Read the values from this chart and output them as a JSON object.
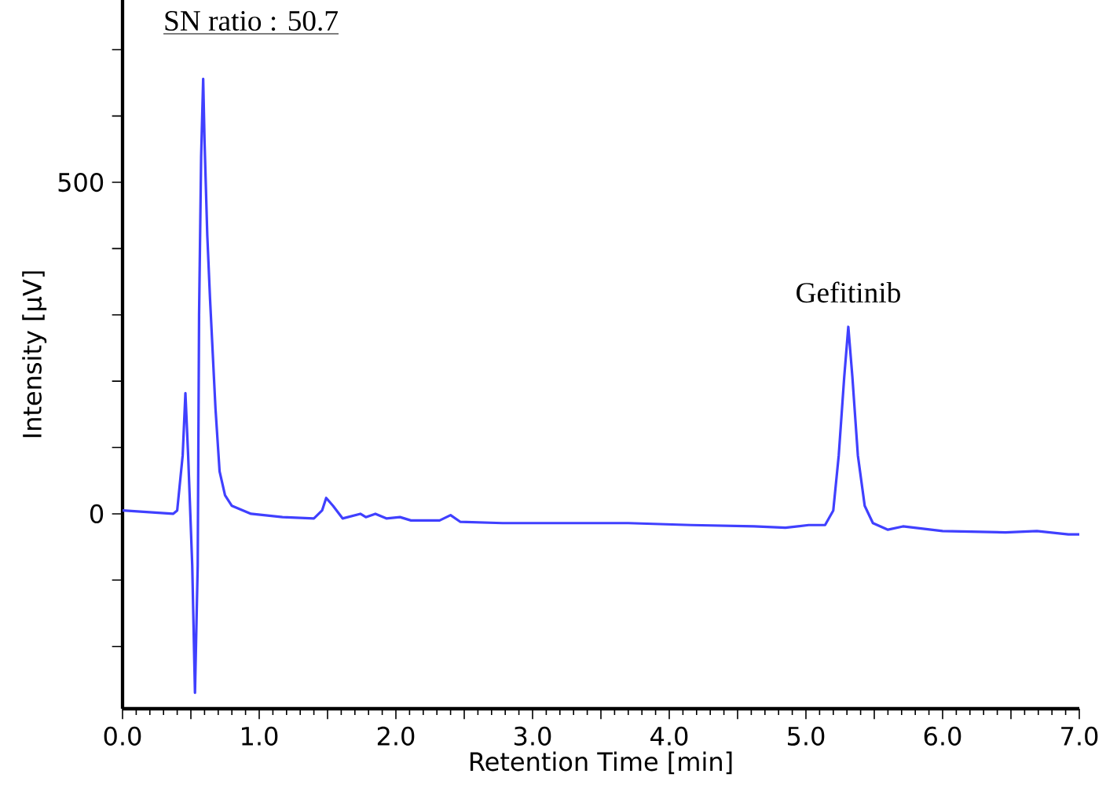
{
  "chart_data": {
    "type": "line",
    "xlabel": "Retention Time [min]",
    "ylabel": "Intensity [μV]",
    "xlim": [
      0,
      7
    ],
    "ylim": [
      -294,
      775
    ],
    "xticks": [
      {
        "value": 0,
        "label": "0.0"
      },
      {
        "value": 0.5,
        "label": null
      },
      {
        "value": 1,
        "label": "1.0"
      },
      {
        "value": 1.5,
        "label": null
      },
      {
        "value": 2,
        "label": "2.0"
      },
      {
        "value": 2.5,
        "label": null
      },
      {
        "value": 3,
        "label": "3.0"
      },
      {
        "value": 3.5,
        "label": null
      },
      {
        "value": 4,
        "label": "4.0"
      },
      {
        "value": 4.5,
        "label": null
      },
      {
        "value": 5,
        "label": "5.0"
      },
      {
        "value": 5.5,
        "label": null
      },
      {
        "value": 6,
        "label": "6.0"
      },
      {
        "value": 6.5,
        "label": null
      },
      {
        "value": 7,
        "label": "7.0"
      }
    ],
    "yticks": [
      {
        "value": -200,
        "label": null
      },
      {
        "value": -100,
        "label": null
      },
      0,
      {
        "value": 100,
        "label": null
      },
      {
        "value": 200,
        "label": null
      },
      {
        "value": 300,
        "label": null
      },
      {
        "value": 400,
        "label": null
      },
      500,
      {
        "value": 600,
        "label": null
      },
      {
        "value": 700,
        "label": null
      }
    ],
    "marker": "none",
    "line_style": "solid",
    "annotations": [
      "SN ratio : 50.7",
      {
        "text": "Gefitinib",
        "x": 5.31,
        "y": 282
      }
    ],
    "series": [
      {
        "color": "#4040ff",
        "x": [
          0,
          0.37,
          0.4,
          0.44,
          0.46,
          0.48,
          0.51,
          0.53,
          0.55,
          0.56,
          0.575,
          0.59,
          0.6,
          0.62,
          0.64,
          0.68,
          0.71,
          0.75,
          0.8,
          0.94,
          1.17,
          1.4,
          1.46,
          1.49,
          1.54,
          1.61,
          1.74,
          1.78,
          1.85,
          1.93,
          2.03,
          2.11,
          2.32,
          2.4,
          2.47,
          2.78,
          3.24,
          3.7,
          4.16,
          4.62,
          4.85,
          5.02,
          5.14,
          5.2,
          5.24,
          5.28,
          5.31,
          5.34,
          5.38,
          5.43,
          5.49,
          5.6,
          5.71,
          6.0,
          6.46,
          6.69,
          6.92,
          7.0
        ],
        "values": [
          5,
          0,
          5,
          88,
          182,
          88,
          -78,
          -270,
          -78,
          300,
          538,
          656,
          562,
          420,
          325,
          159,
          64,
          28,
          12,
          0,
          -5,
          -7,
          5,
          24,
          12,
          -7,
          0,
          -5,
          0,
          -7,
          -5,
          -10,
          -10,
          -2,
          -12,
          -14,
          -14,
          -14,
          -17,
          -19,
          -21,
          -17,
          -17,
          5,
          88,
          206,
          282,
          206,
          88,
          12,
          -14,
          -24,
          -19,
          -26,
          -28,
          -26,
          -31,
          -31
        ]
      }
    ]
  }
}
